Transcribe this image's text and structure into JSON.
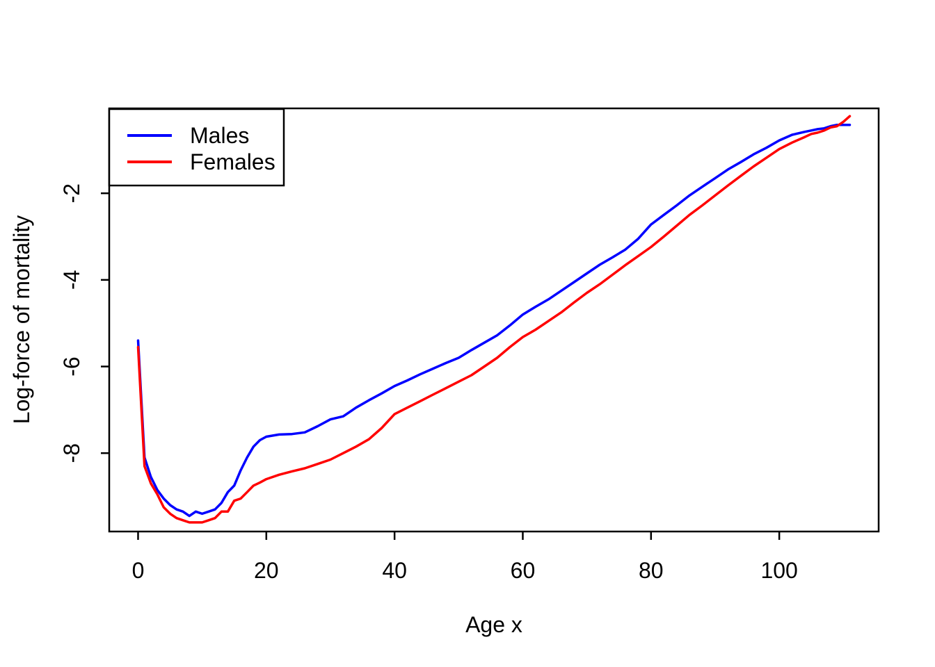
{
  "figure": {
    "background": "#ffffff",
    "axis_color": "#000000"
  },
  "chart_data": {
    "type": "line",
    "title": "",
    "xlabel": "Age x",
    "ylabel": "Log-force of mortality",
    "xlim": [
      -4.5,
      115.5
    ],
    "ylim": [
      -9.81,
      -0.04
    ],
    "x_ticks": [
      0,
      20,
      40,
      60,
      80,
      100
    ],
    "y_ticks": [
      -8,
      -6,
      -4,
      -2
    ],
    "grid": false,
    "legend": {
      "position": "topleft",
      "entries": [
        {
          "label": "Males",
          "color": "#0000FF"
        },
        {
          "label": "Females",
          "color": "#FF0000"
        }
      ]
    },
    "x": [
      0,
      1,
      2,
      3,
      4,
      5,
      6,
      7,
      8,
      9,
      10,
      11,
      12,
      13,
      14,
      15,
      16,
      17,
      18,
      19,
      20,
      22,
      24,
      26,
      28,
      30,
      32,
      34,
      36,
      38,
      40,
      42,
      44,
      46,
      48,
      50,
      52,
      54,
      56,
      58,
      60,
      62,
      64,
      66,
      68,
      70,
      72,
      74,
      76,
      78,
      80,
      82,
      84,
      86,
      88,
      90,
      92,
      94,
      96,
      98,
      100,
      102,
      104,
      105,
      106,
      107,
      108,
      109,
      110,
      111
    ],
    "series": [
      {
        "name": "Males",
        "color": "#0000FF",
        "values": [
          -5.4,
          -8.1,
          -8.55,
          -8.85,
          -9.05,
          -9.2,
          -9.3,
          -9.35,
          -9.45,
          -9.35,
          -9.4,
          -9.35,
          -9.3,
          -9.15,
          -8.9,
          -8.75,
          -8.4,
          -8.1,
          -7.85,
          -7.7,
          -7.62,
          -7.57,
          -7.56,
          -7.52,
          -7.38,
          -7.22,
          -7.15,
          -6.95,
          -6.78,
          -6.62,
          -6.45,
          -6.32,
          -6.18,
          -6.05,
          -5.92,
          -5.8,
          -5.62,
          -5.45,
          -5.28,
          -5.05,
          -4.8,
          -4.62,
          -4.45,
          -4.25,
          -4.05,
          -3.85,
          -3.65,
          -3.48,
          -3.3,
          -3.05,
          -2.72,
          -2.5,
          -2.28,
          -2.05,
          -1.85,
          -1.65,
          -1.45,
          -1.28,
          -1.1,
          -0.95,
          -0.78,
          -0.65,
          -0.58,
          -0.55,
          -0.52,
          -0.5,
          -0.45,
          -0.42,
          -0.42,
          -0.42
        ]
      },
      {
        "name": "Females",
        "color": "#FF0000",
        "values": [
          -5.55,
          -8.3,
          -8.7,
          -8.95,
          -9.25,
          -9.4,
          -9.5,
          -9.55,
          -9.6,
          -9.6,
          -9.6,
          -9.55,
          -9.5,
          -9.35,
          -9.35,
          -9.1,
          -9.05,
          -8.9,
          -8.75,
          -8.68,
          -8.6,
          -8.5,
          -8.42,
          -8.35,
          -8.25,
          -8.15,
          -8.0,
          -7.85,
          -7.68,
          -7.42,
          -7.1,
          -6.95,
          -6.8,
          -6.65,
          -6.5,
          -6.35,
          -6.2,
          -6.0,
          -5.8,
          -5.55,
          -5.32,
          -5.15,
          -4.95,
          -4.75,
          -4.52,
          -4.3,
          -4.1,
          -3.88,
          -3.66,
          -3.45,
          -3.24,
          -3.0,
          -2.75,
          -2.5,
          -2.28,
          -2.05,
          -1.82,
          -1.6,
          -1.38,
          -1.18,
          -0.98,
          -0.83,
          -0.7,
          -0.63,
          -0.6,
          -0.55,
          -0.48,
          -0.45,
          -0.35,
          -0.22
        ]
      }
    ]
  }
}
